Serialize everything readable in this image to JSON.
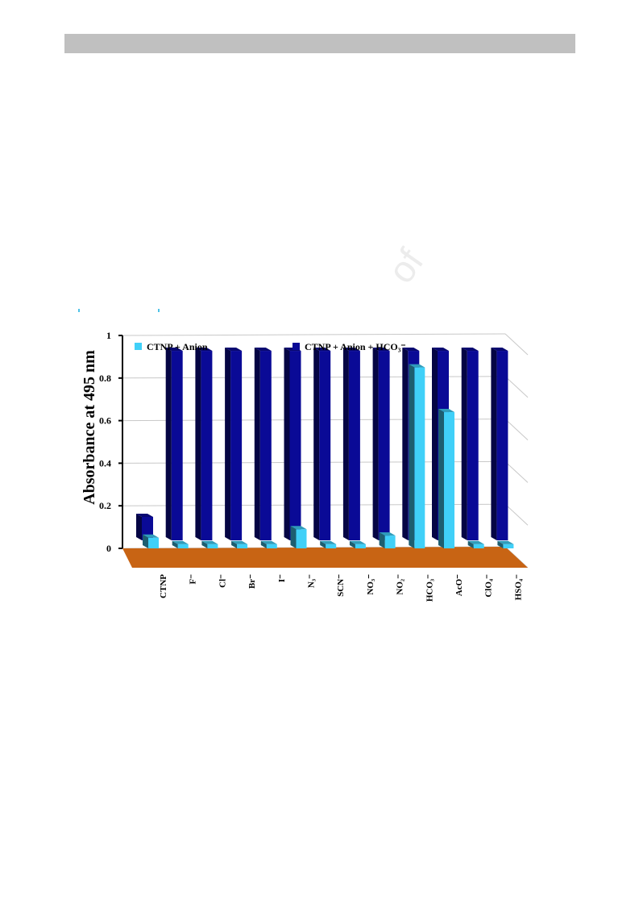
{
  "chart_data": {
    "type": "bar",
    "title": "",
    "ylabel": "Absorbance at 495 nm",
    "xlabel": "",
    "ylim": [
      0,
      1
    ],
    "yticks": [
      "0",
      "0.2",
      "0.4",
      "0.6",
      "0.8",
      "1"
    ],
    "yticks_values": [
      0,
      0.2,
      0.4,
      0.6,
      0.8,
      1
    ],
    "categories": [
      "CTNP",
      "F⁻",
      "Cl⁻",
      "Br⁻",
      "I⁻",
      "N₃⁻",
      "SCN⁻",
      "NO₃⁻",
      "NO₂⁻",
      "HCO₃⁻",
      "AcO⁻",
      "ClO₄⁻",
      "HSO₄⁻"
    ],
    "series": [
      {
        "name": "CTNP + Anion + HCO₃⁻",
        "color": "#0a0a96",
        "values": [
          0.11,
          0.89,
          0.89,
          0.89,
          0.89,
          0.89,
          0.89,
          0.89,
          0.89,
          0.89,
          0.89,
          0.89,
          0.89
        ]
      },
      {
        "name": "CTNP + Anion",
        "color": "#40d0f8",
        "values": [
          0.05,
          0.02,
          0.02,
          0.02,
          0.02,
          0.09,
          0.02,
          0.02,
          0.06,
          0.85,
          0.64,
          0.02,
          0.02
        ]
      }
    ],
    "legend_position": "top",
    "grid": true,
    "floor_color": "#c86414",
    "three_d": true
  }
}
